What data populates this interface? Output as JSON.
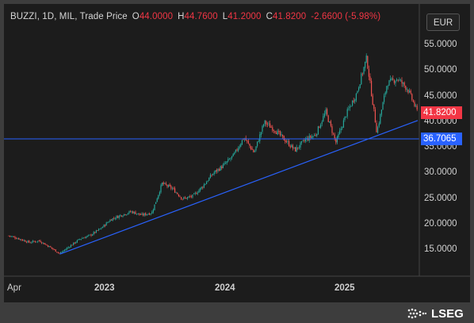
{
  "legend": {
    "instrument": "BUZZI, 1D, MIL, Trade Price",
    "open_key": "O",
    "open": "44.0000",
    "high_key": "H",
    "high": "44.7600",
    "low_key": "L",
    "low": "41.2000",
    "close_key": "C",
    "close": "41.8200",
    "change": "-2.6600 (-5.98%)"
  },
  "currency_button": "EUR",
  "colors": {
    "up": "#26a69a",
    "down": "#ef5350",
    "line": "#2962ff",
    "horizontal_tag": "#2962ff",
    "last_tag": "#f23645",
    "background": "#1c1c1c"
  },
  "y_ticks": [
    "55.0000",
    "50.0000",
    "45.0000",
    "40.0000",
    "35.0000",
    "30.0000",
    "25.0000",
    "20.0000",
    "15.0000"
  ],
  "x_ticks": [
    "Apr",
    "2023",
    "2024",
    "2025"
  ],
  "last_price_tag": "41.8200",
  "horizontal_line_tag": "36.7065",
  "brand": {
    "name": "LSEG",
    "icon": "lseg-logo-icon"
  },
  "chart_data": {
    "type": "candlestick",
    "x_axis": "date",
    "y_axis": "price",
    "ylim": [
      10,
      57.5
    ],
    "x_ticks": [
      "Apr",
      "2023",
      "2024",
      "2025"
    ],
    "horizontal_line": 36.7065,
    "trend_line": [
      {
        "x": "2022-09",
        "y": 14.2
      },
      {
        "x": "2025-08",
        "y": 40.3
      }
    ],
    "last_close": 41.82,
    "price_path": [
      [
        "2022-04",
        17.8
      ],
      [
        "2022-05",
        17.2
      ],
      [
        "2022-06",
        16.5
      ],
      [
        "2022-07",
        16.8
      ],
      [
        "2022-08",
        15.6
      ],
      [
        "2022-09",
        14.3
      ],
      [
        "2022-10",
        15.8
      ],
      [
        "2022-11",
        17.2
      ],
      [
        "2022-12",
        17.9
      ],
      [
        "2023-01",
        19.2
      ],
      [
        "2023-02",
        21.0
      ],
      [
        "2023-03",
        21.8
      ],
      [
        "2023-04",
        22.5
      ],
      [
        "2023-05",
        21.8
      ],
      [
        "2023-06",
        22.3
      ],
      [
        "2023-07",
        28.0
      ],
      [
        "2023-08",
        27.0
      ],
      [
        "2023-09",
        25.0
      ],
      [
        "2023-10",
        25.5
      ],
      [
        "2023-11",
        27.5
      ],
      [
        "2023-12",
        30.0
      ],
      [
        "2024-01",
        31.5
      ],
      [
        "2024-02",
        33.5
      ],
      [
        "2024-03",
        37.0
      ],
      [
        "2024-04",
        34.0
      ],
      [
        "2024-05",
        40.0
      ],
      [
        "2024-06",
        38.5
      ],
      [
        "2024-07",
        36.5
      ],
      [
        "2024-08",
        34.5
      ],
      [
        "2024-09",
        36.5
      ],
      [
        "2024-10",
        37.5
      ],
      [
        "2024-11",
        42.0
      ],
      [
        "2024-12",
        36.0
      ],
      [
        "2025-01",
        41.5
      ],
      [
        "2025-02",
        45.5
      ],
      [
        "2025-03",
        52.5
      ],
      [
        "2025-04",
        38.0
      ],
      [
        "2025-05",
        47.5
      ],
      [
        "2025-06",
        48.5
      ],
      [
        "2025-07",
        46.5
      ],
      [
        "2025-08",
        41.82
      ]
    ]
  }
}
